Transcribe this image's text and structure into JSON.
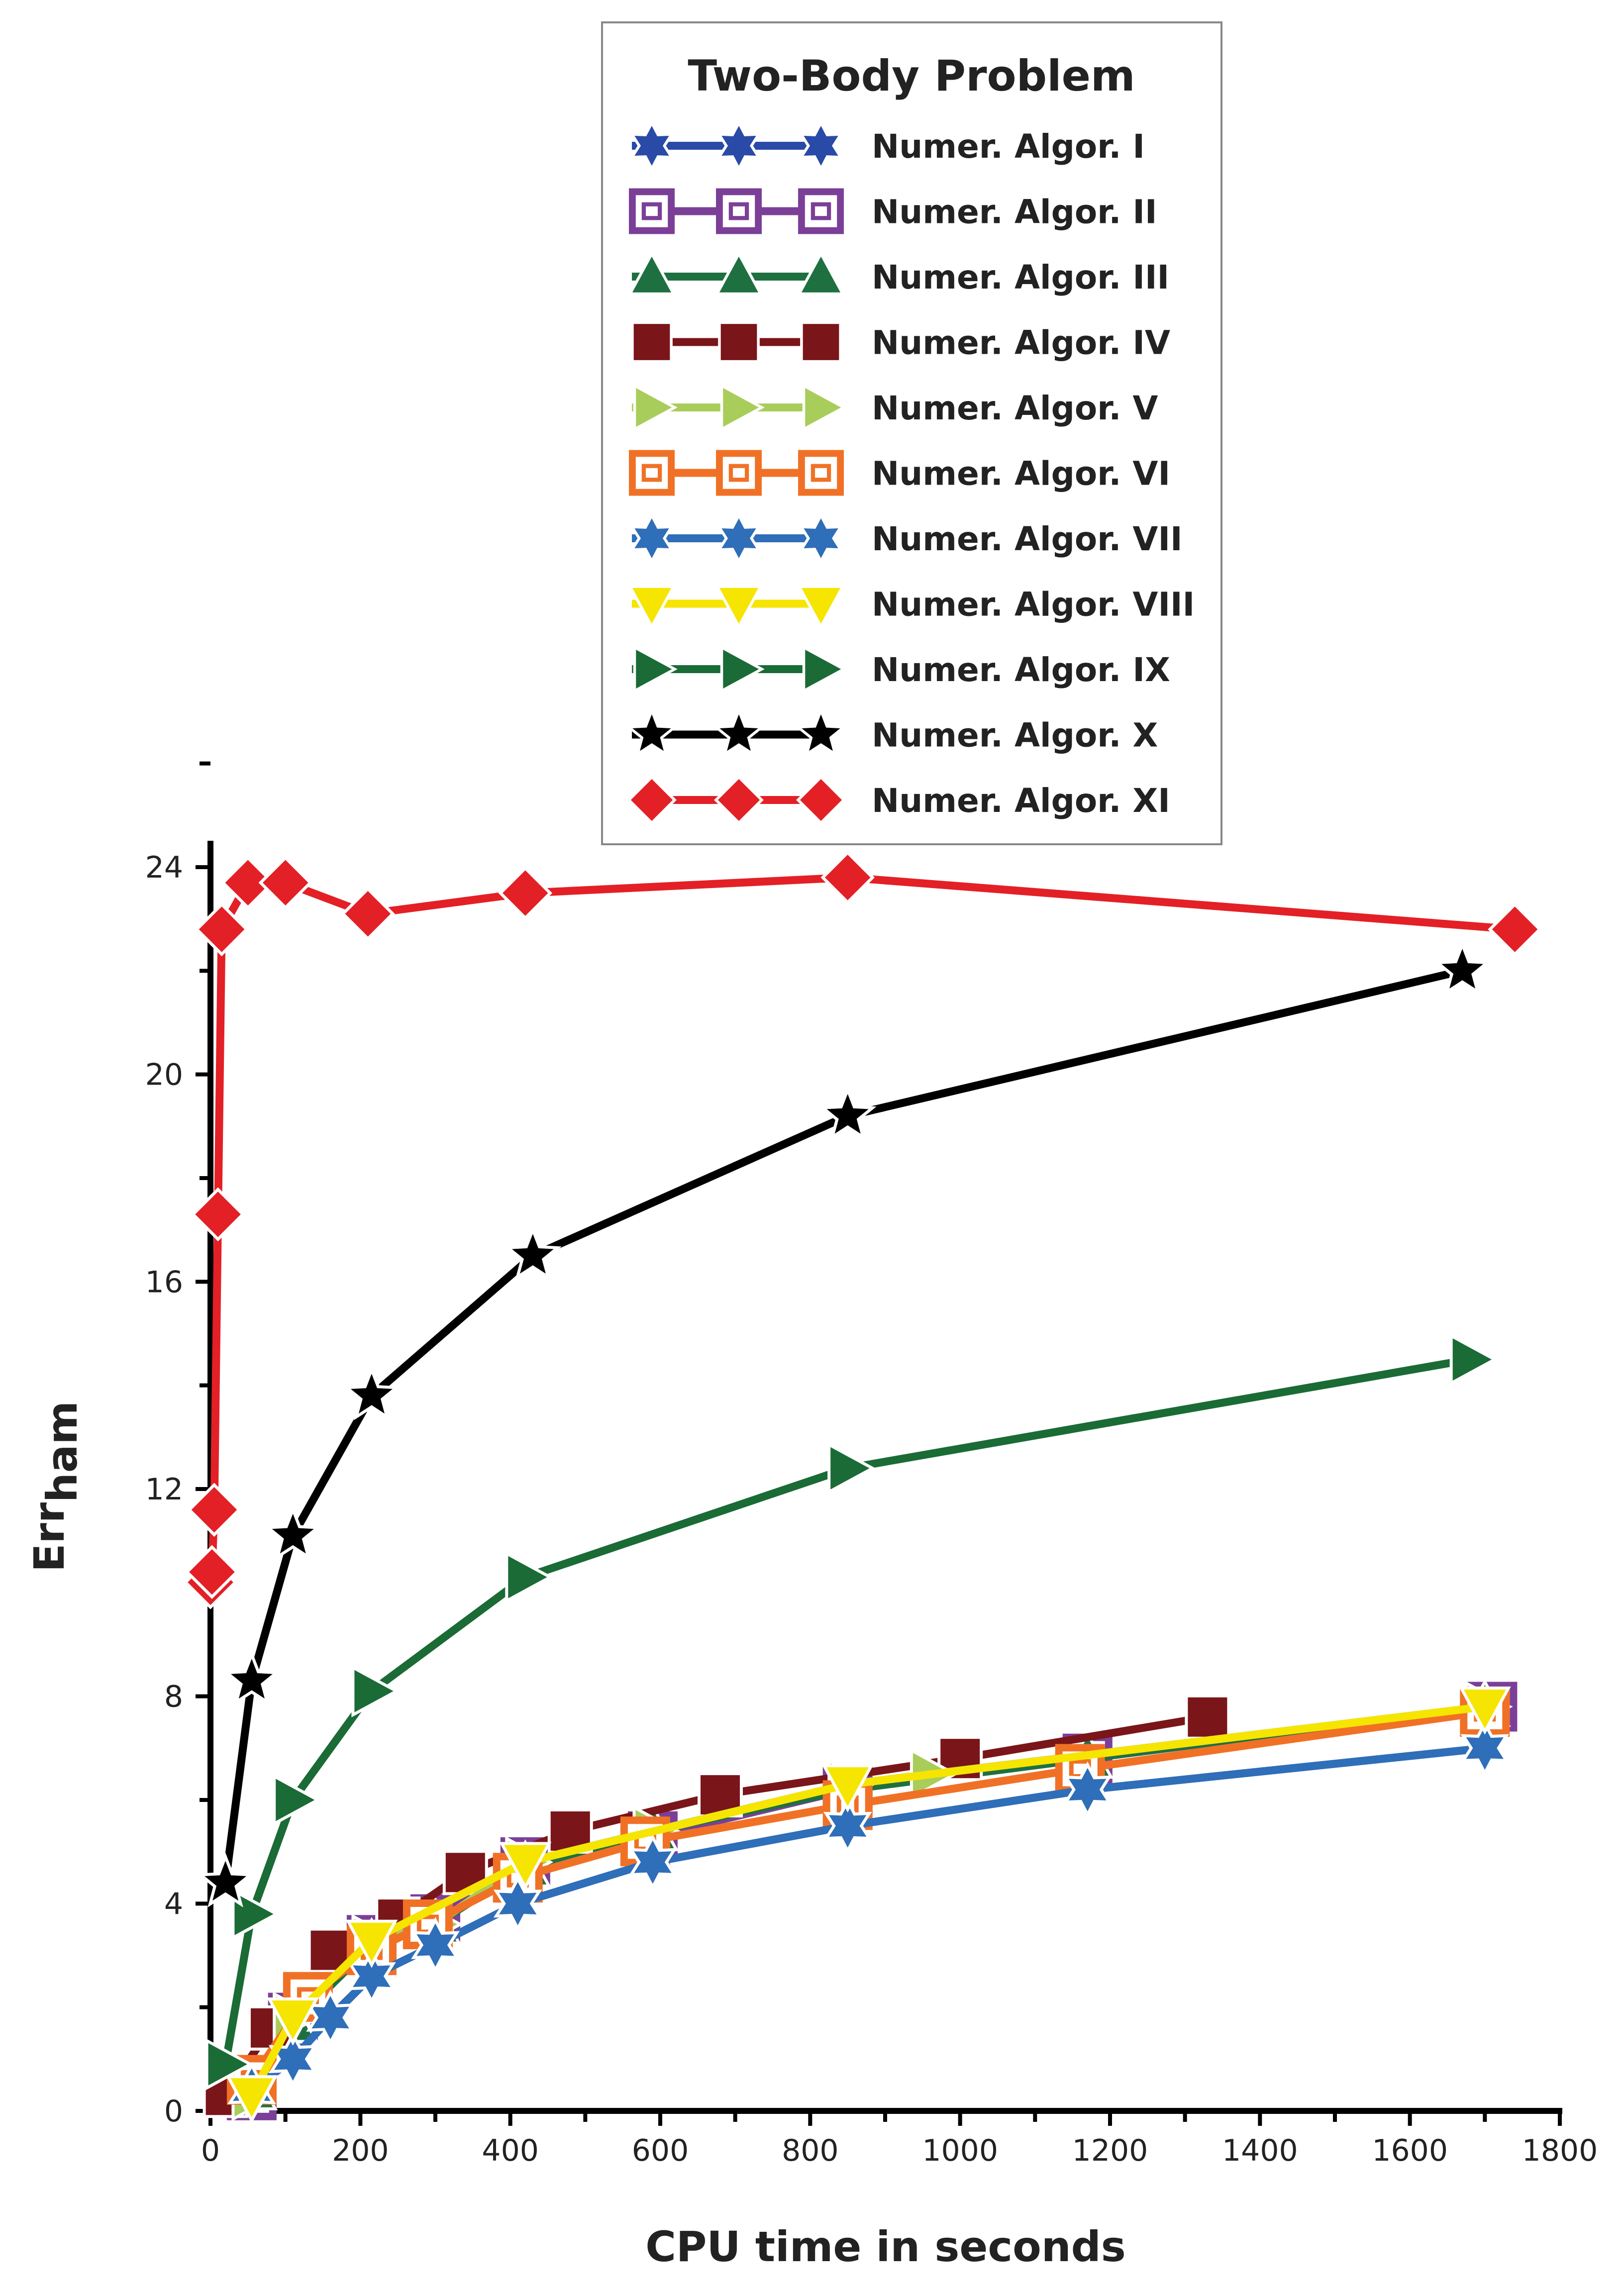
{
  "chart_data": {
    "type": "line",
    "title": "Two-Body Problem",
    "xlabel": "CPU time in seconds",
    "ylabel_main": "Err",
    "ylabel_sub": "ham",
    "xlim": [
      0,
      1800
    ],
    "ylim": [
      0,
      24
    ],
    "xticks": [
      0,
      200,
      400,
      600,
      800,
      1000,
      1200,
      1400,
      1600,
      1800
    ],
    "yticks": [
      0,
      4,
      8,
      12,
      16,
      20,
      24
    ],
    "legend_position": "top-right",
    "series": [
      {
        "name": "Numer. Algor. I",
        "color": "#2a4aa8",
        "marker": "star6",
        "x": [
          55,
          110,
          215,
          300,
          410,
          590,
          850,
          1170,
          1700
        ],
        "y": [
          0.5,
          1.1,
          2.6,
          3.2,
          4.0,
          4.8,
          5.5,
          6.2,
          7.0
        ]
      },
      {
        "name": "Numer. Algor. II",
        "color": "#7b3f98",
        "marker": "square-open",
        "x": [
          55,
          110,
          215,
          300,
          420,
          590,
          850,
          1170,
          1710
        ],
        "y": [
          0.3,
          1.8,
          3.3,
          3.7,
          4.8,
          5.3,
          6.2,
          6.8,
          7.8
        ]
      },
      {
        "name": "Numer. Algor. III",
        "color": "#1e7040",
        "marker": "triangle-up",
        "x": [
          55,
          110,
          215,
          300,
          420,
          590,
          850,
          1170,
          1700
        ],
        "y": [
          0.4,
          1.7,
          3.2,
          3.6,
          4.7,
          5.4,
          6.2,
          6.8,
          7.8
        ]
      },
      {
        "name": "Numer. Algor. IV",
        "color": "#7a1519",
        "marker": "square",
        "x": [
          20,
          80,
          160,
          250,
          340,
          480,
          680,
          1000,
          1330
        ],
        "y": [
          0.3,
          1.6,
          3.1,
          3.7,
          4.6,
          5.4,
          6.1,
          6.8,
          7.6
        ]
      },
      {
        "name": "Numer. Algor. V",
        "color": "#a9cd5a",
        "marker": "triangle-right",
        "x": [
          55,
          110,
          215,
          300,
          420,
          590,
          850,
          960,
          1700
        ],
        "y": [
          0.3,
          1.8,
          3.3,
          3.6,
          4.8,
          5.4,
          6.3,
          6.5,
          7.8
        ]
      },
      {
        "name": "Numer. Algor. VI",
        "color": "#f07126",
        "marker": "square-open",
        "x": [
          55,
          130,
          215,
          290,
          410,
          580,
          850,
          1160,
          1700
        ],
        "y": [
          0.6,
          2.2,
          3.1,
          3.6,
          4.5,
          5.2,
          5.9,
          6.6,
          7.7
        ]
      },
      {
        "name": "Numer. Algor. VII",
        "color": "#2f6eb8",
        "marker": "star6",
        "x": [
          55,
          110,
          160,
          215,
          300,
          410,
          590,
          850,
          1170,
          1700
        ],
        "y": [
          0.4,
          1.0,
          1.8,
          2.6,
          3.2,
          4.0,
          4.8,
          5.5,
          6.2,
          7.0
        ]
      },
      {
        "name": "Numer. Algor. VIII",
        "color": "#f6e500",
        "marker": "triangle-down",
        "x": [
          55,
          110,
          215,
          420,
          850,
          1700
        ],
        "y": [
          0.3,
          1.8,
          3.3,
          4.8,
          6.3,
          7.8
        ]
      },
      {
        "name": "Numer. Algor. IX",
        "color": "#1a6b35",
        "marker": "triangle-right",
        "x": [
          20,
          55,
          110,
          215,
          420,
          850,
          1680
        ],
        "y": [
          0.9,
          3.8,
          6.0,
          8.1,
          10.3,
          12.4,
          14.5
        ]
      },
      {
        "name": "Numer. Algor. X",
        "color": "#000000",
        "marker": "star5",
        "x": [
          20,
          55,
          110,
          215,
          430,
          850,
          1670
        ],
        "y": [
          4.4,
          8.3,
          11.1,
          13.8,
          16.5,
          19.2,
          22.0
        ]
      },
      {
        "name": "Numer. Algor. XI",
        "color": "#e32026",
        "marker": "diamond",
        "x": [
          0,
          2,
          5,
          10,
          15,
          50,
          100,
          210,
          420,
          850,
          1740
        ],
        "y": [
          10.2,
          10.4,
          11.6,
          17.3,
          22.8,
          23.7,
          23.7,
          23.1,
          23.5,
          23.8,
          22.8
        ]
      }
    ]
  }
}
